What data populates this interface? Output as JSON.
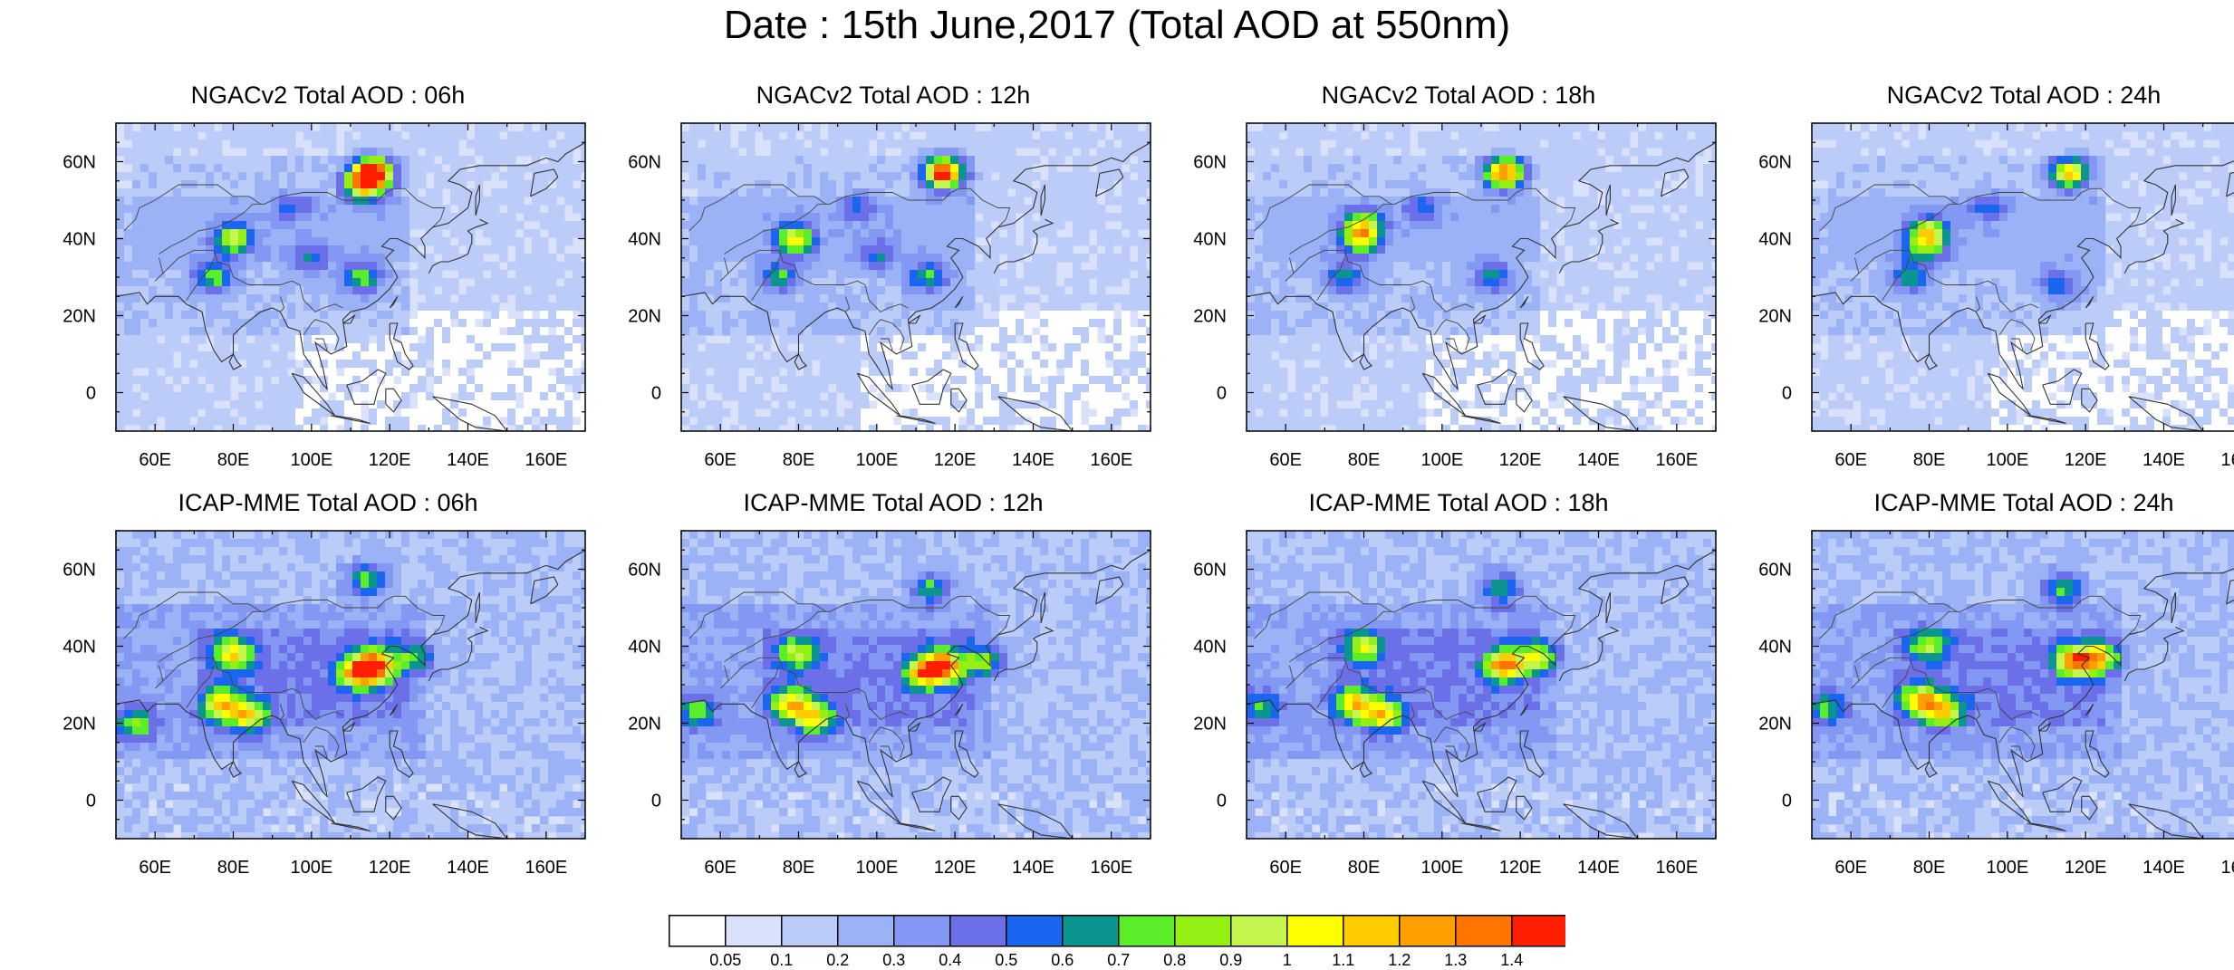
{
  "title": "Date : 15th June,2017 (Total AOD at 550nm)",
  "panels": [
    {
      "title": "NGACv2 Total AOD : 06h",
      "model": "NGACv2",
      "hour": "06h",
      "hotspots": [
        [
          40,
          80,
          0.75
        ],
        [
          57,
          116,
          1.35
        ],
        [
          54,
          113,
          0.9
        ],
        [
          30,
          75,
          0.55
        ],
        [
          30,
          113,
          0.55
        ],
        [
          35,
          100,
          0.35
        ],
        [
          48,
          95,
          0.3
        ]
      ]
    },
    {
      "title": "NGACv2 Total AOD : 12h",
      "model": "NGACv2",
      "hour": "12h",
      "hotspots": [
        [
          40,
          79,
          0.8
        ],
        [
          57,
          117,
          1.4
        ],
        [
          30,
          75,
          0.5
        ],
        [
          30,
          113,
          0.5
        ],
        [
          35,
          100,
          0.35
        ],
        [
          48,
          95,
          0.3
        ]
      ]
    },
    {
      "title": "NGACv2 Total AOD : 18h",
      "model": "NGACv2",
      "hour": "18h",
      "hotspots": [
        [
          40,
          79,
          0.75
        ],
        [
          57,
          116,
          1.2
        ],
        [
          44,
          80,
          0.6
        ],
        [
          30,
          75,
          0.45
        ],
        [
          30,
          113,
          0.45
        ],
        [
          48,
          95,
          0.3
        ]
      ]
    },
    {
      "title": "NGACv2 Total AOD : 24h",
      "model": "NGACv2",
      "hour": "24h",
      "hotspots": [
        [
          42,
          80,
          0.65
        ],
        [
          57,
          116,
          0.95
        ],
        [
          38,
          79,
          0.55
        ],
        [
          30,
          75,
          0.45
        ],
        [
          28,
          113,
          0.4
        ],
        [
          48,
          95,
          0.3
        ]
      ]
    },
    {
      "title": "ICAP-MME Total AOD : 06h",
      "model": "ICAP-MME",
      "hour": "06h",
      "hotspots": [
        [
          25,
          77,
          0.75
        ],
        [
          22,
          84,
          0.7
        ],
        [
          35,
          116,
          1.1
        ],
        [
          33,
          112,
          0.85
        ],
        [
          38,
          80,
          0.8
        ],
        [
          57,
          114,
          0.55
        ],
        [
          20,
          55,
          0.55
        ],
        [
          37,
          127,
          0.45
        ]
      ]
    },
    {
      "title": "ICAP-MME Total AOD : 12h",
      "model": "ICAP-MME",
      "hour": "12h",
      "hotspots": [
        [
          25,
          78,
          0.75
        ],
        [
          21,
          84,
          0.7
        ],
        [
          35,
          117,
          1.0
        ],
        [
          33,
          112,
          0.8
        ],
        [
          38,
          80,
          0.6
        ],
        [
          36,
          128,
          0.55
        ],
        [
          55,
          114,
          0.5
        ],
        [
          23,
          54,
          0.5
        ]
      ]
    },
    {
      "title": "ICAP-MME Total AOD : 18h",
      "model": "ICAP-MME",
      "hour": "18h",
      "hotspots": [
        [
          25,
          78,
          0.75
        ],
        [
          22,
          85,
          0.7
        ],
        [
          35,
          116,
          0.95
        ],
        [
          37,
          125,
          0.65
        ],
        [
          40,
          80,
          0.6
        ],
        [
          55,
          115,
          0.5
        ],
        [
          24,
          54,
          0.45
        ]
      ]
    },
    {
      "title": "ICAP-MME Total AOD : 24h",
      "model": "ICAP-MME",
      "hour": "24h",
      "hotspots": [
        [
          26,
          78,
          0.8
        ],
        [
          23,
          84,
          0.7
        ],
        [
          36,
          117,
          0.9
        ],
        [
          37,
          124,
          0.75
        ],
        [
          40,
          80,
          0.55
        ],
        [
          55,
          114,
          0.55
        ],
        [
          24,
          54,
          0.45
        ]
      ]
    }
  ],
  "map": {
    "lon_range": [
      50,
      170
    ],
    "lat_range": [
      -10,
      70
    ],
    "lon_ticks": [
      60,
      80,
      100,
      120,
      140,
      160
    ],
    "lon_tick_labels": [
      "60E",
      "80E",
      "100E",
      "120E",
      "140E",
      "160E"
    ],
    "lat_ticks": [
      0,
      20,
      40,
      60
    ],
    "lat_tick_labels": [
      "0",
      "20N",
      "40N",
      "60N"
    ]
  },
  "colorbar": {
    "levels": [
      "0.05",
      "0.1",
      "0.2",
      "0.3",
      "0.4",
      "0.5",
      "0.6",
      "0.7",
      "0.8",
      "0.9",
      "1",
      "1.1",
      "1.2",
      "1.3",
      "1.4"
    ],
    "colors": [
      "#ffffff",
      "#dae2fb",
      "#bbccf8",
      "#9bb3f6",
      "#8398f2",
      "#6c70e8",
      "#1a66f0",
      "#0b9590",
      "#59ee29",
      "#94f013",
      "#c4f64c",
      "#ffff00",
      "#ffcc00",
      "#ff9f00",
      "#ff7500",
      "#ff1e00"
    ]
  }
}
